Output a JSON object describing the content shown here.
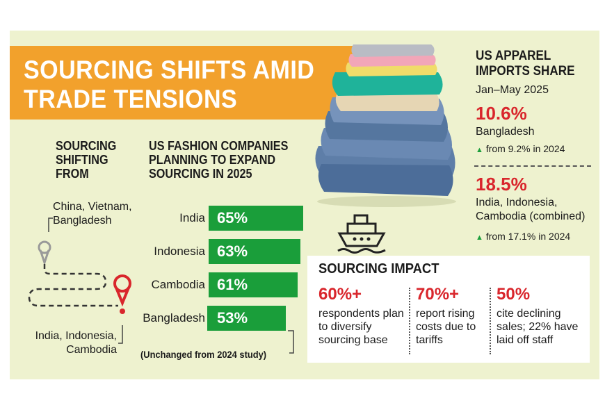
{
  "title": "SOURCING SHIFTS AMID TRADE TENSIONS",
  "left_panel": {
    "heading": "SOURCING SHIFTING FROM",
    "from": "China, Vietnam, Bangladesh",
    "to": "India, Indonesia, Cambodia"
  },
  "chart_data": {
    "type": "bar",
    "title": "US FASHION COMPANIES PLANNING TO EXPAND SOURCING IN 2025",
    "categories": [
      "India",
      "Indonesia",
      "Cambodia",
      "Bangladesh"
    ],
    "values": [
      65,
      63,
      61,
      53
    ],
    "value_labels": [
      "65%",
      "63%",
      "61%",
      "53%"
    ],
    "unit": "%",
    "xlabel": "",
    "ylabel": "",
    "ylim": [
      0,
      100
    ],
    "note": "(Unchanged from 2024 study)",
    "grid": false,
    "colors": {
      "bar": "#1a9e3a",
      "bar_label": "#ffffff"
    }
  },
  "imports_share": {
    "heading": "US APPAREL IMPORTS SHARE",
    "period": "Jan–May 2025",
    "items": [
      {
        "value": "10.6%",
        "label": "Bangladesh",
        "change": "from 9.2% in 2024"
      },
      {
        "value": "18.5%",
        "label": "India, Indonesia, Cambodia (combined)",
        "change": "from 17.1% in 2024"
      }
    ]
  },
  "impact": {
    "heading": "SOURCING IMPACT",
    "items": [
      {
        "value": "60%+",
        "text": "respondents plan to diversify sourcing base"
      },
      {
        "value": "70%+",
        "text": "report rising costs due to tariffs"
      },
      {
        "value": "50%",
        "text": "cite declining sales; 22% have laid off staff"
      }
    ]
  },
  "colors": {
    "accent": "#f2a12c",
    "panel": "#eef2cf",
    "highlight": "#d9262c",
    "green": "#1a9e3a"
  },
  "icons": [
    "ship-icon",
    "location-pin-icon",
    "arrow-up-icon",
    "clothes-stack-image"
  ]
}
